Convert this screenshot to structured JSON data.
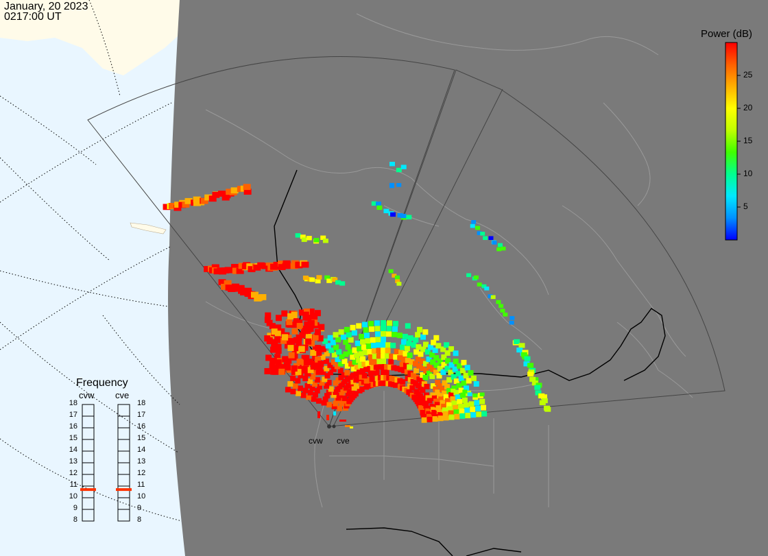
{
  "header": {
    "date": "January, 20 2023",
    "time": "0217:00 UT"
  },
  "colorbar": {
    "title": "Power (dB)",
    "ticks": [
      25,
      20,
      15,
      10,
      5
    ],
    "range": [
      0,
      30
    ],
    "stops": [
      "#0000ff",
      "#0090ff",
      "#00e8ff",
      "#00ff90",
      "#40ff00",
      "#c0ff00",
      "#ffff00",
      "#ffb000",
      "#ff6000",
      "#ff0000"
    ]
  },
  "frequency": {
    "title": "Frequency",
    "radars": [
      "cvw",
      "cve"
    ],
    "range_min": 8,
    "range_max": 18,
    "labels": [
      "18",
      "17",
      "16",
      "15",
      "14",
      "13",
      "12",
      "11",
      "10",
      "9",
      "8"
    ],
    "current": [
      11,
      11
    ]
  },
  "sites": [
    "cvw",
    "cve"
  ],
  "colors": {
    "ocean": "#e9f6ff",
    "night": "#7a7a7a",
    "land": "#fffbe9",
    "fan": "#555555",
    "marker": "#ff3300"
  }
}
